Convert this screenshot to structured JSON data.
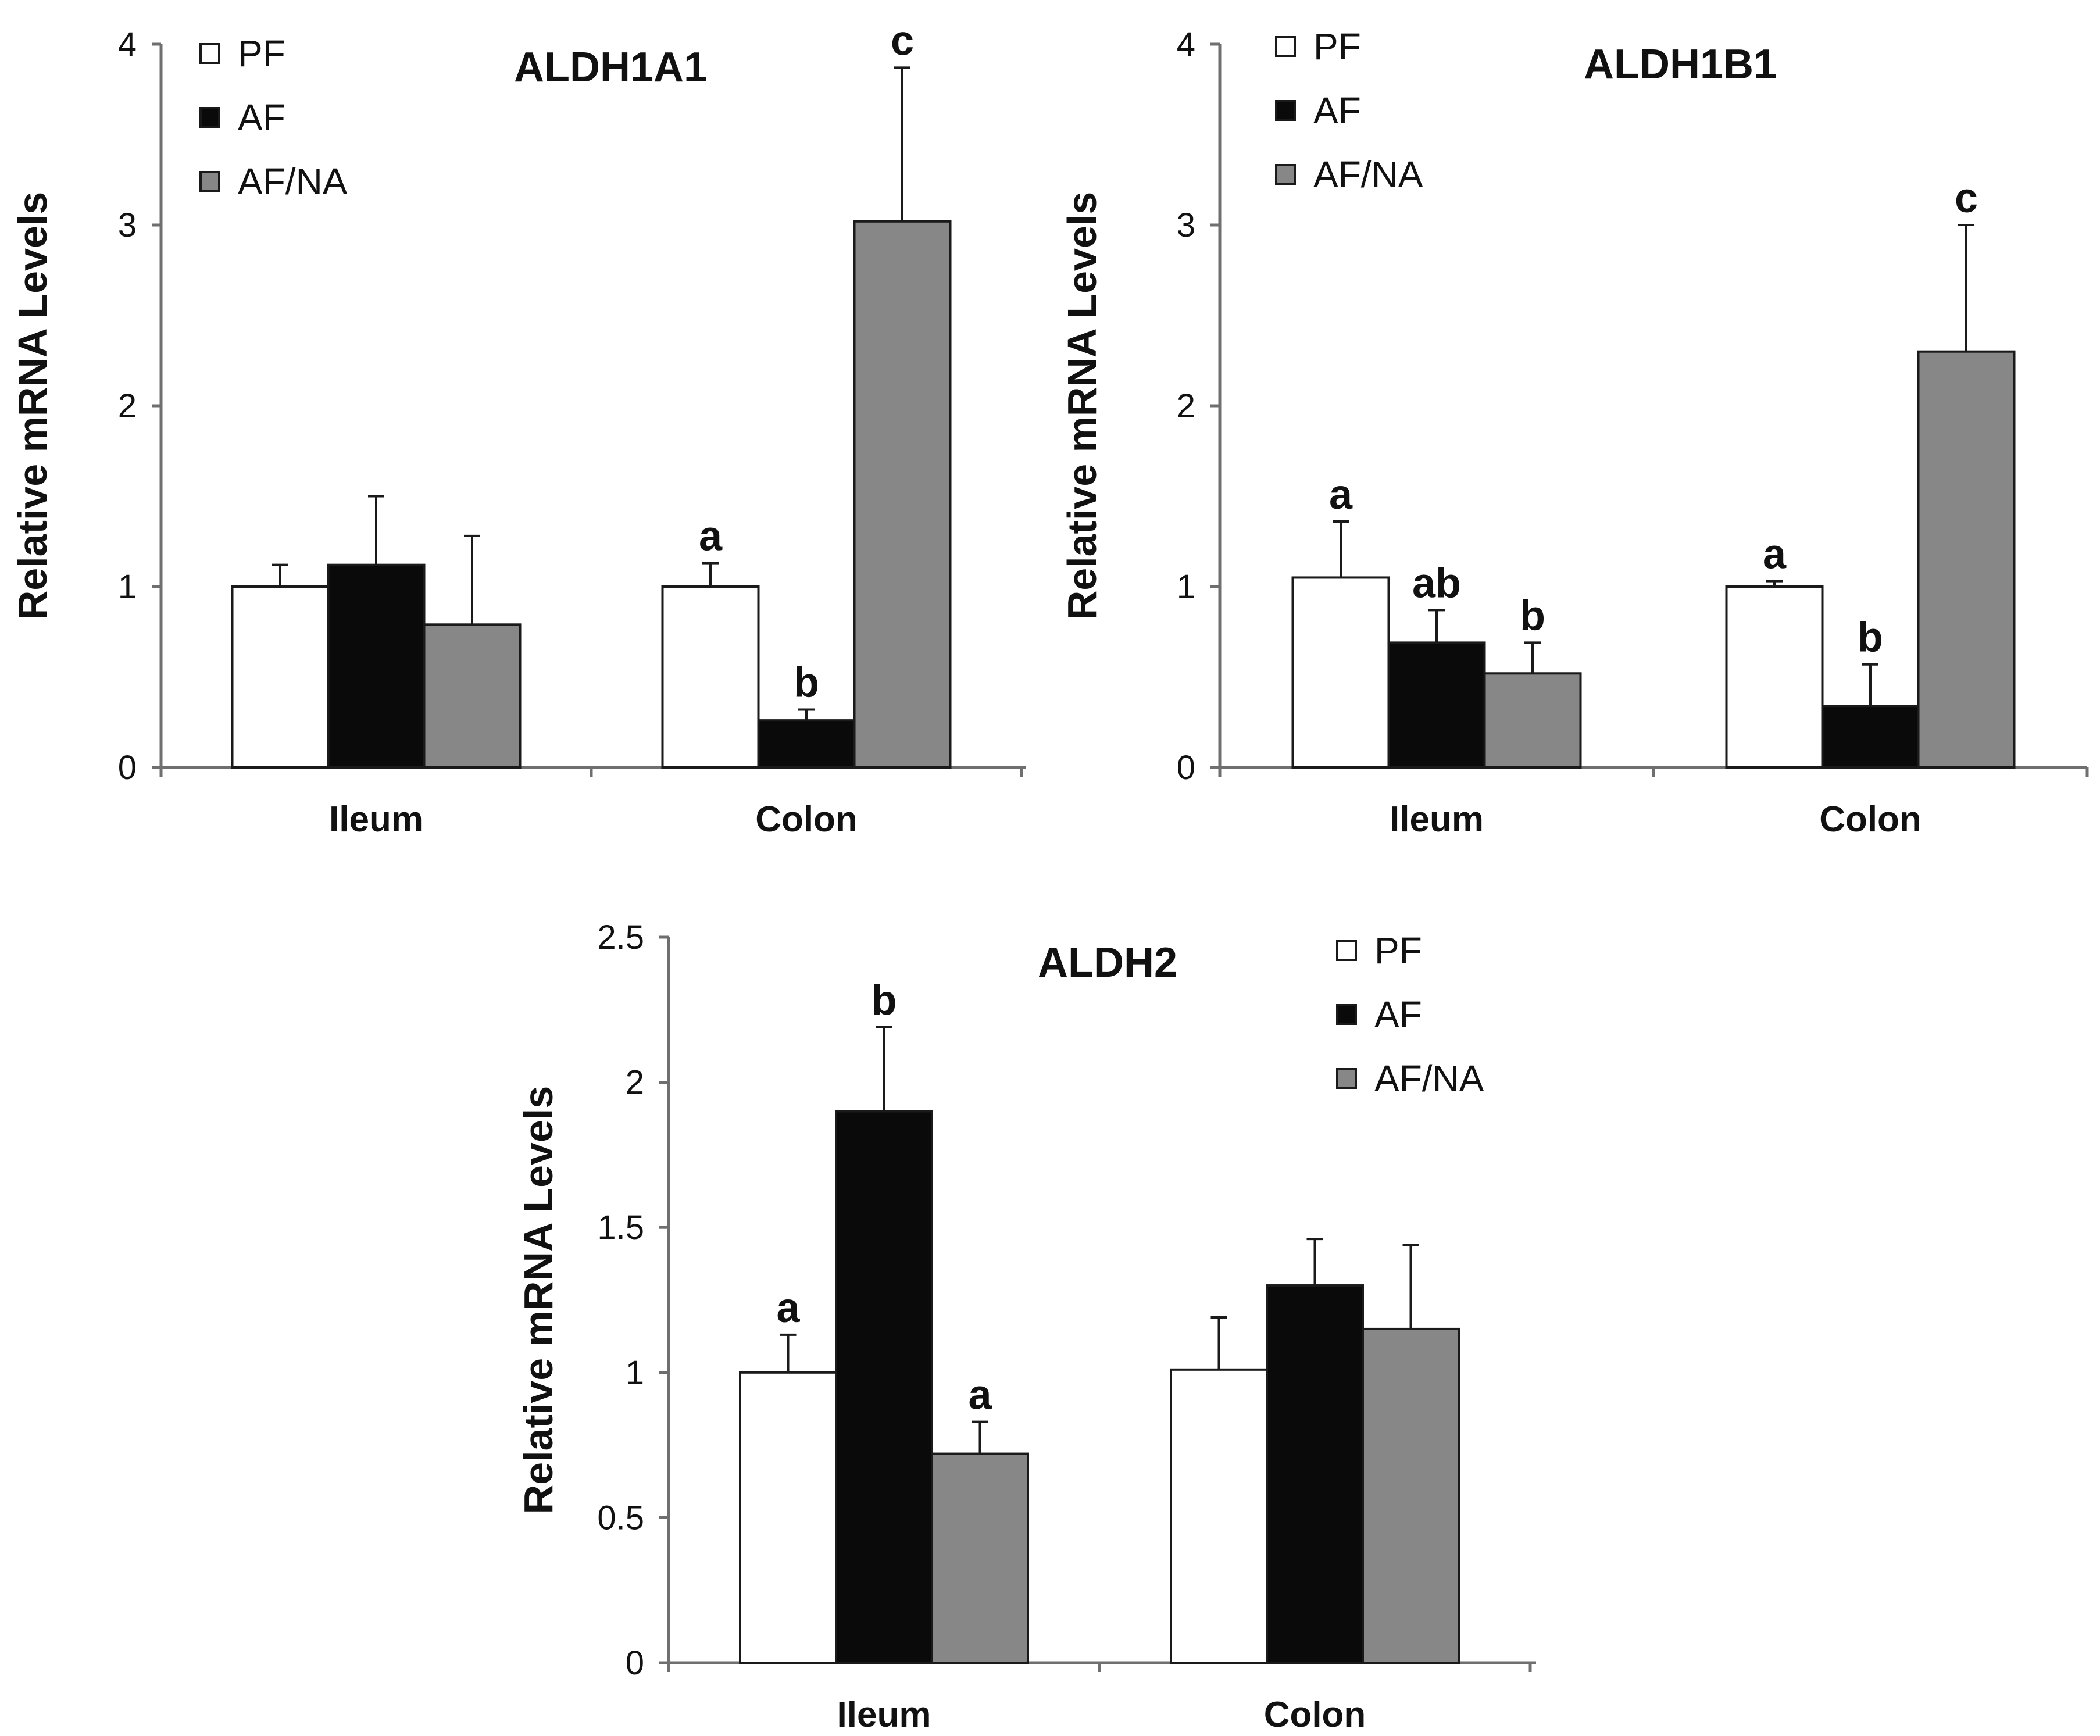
{
  "series_style": {
    "PF": "#ffffff",
    "AF": "#0a0a0a",
    "AF/NA": "#878787",
    "stroke": "#1a1a1a",
    "axis": "#6f6f6f"
  },
  "chart_data": [
    {
      "type": "bar",
      "title": "ALDH1A1",
      "xlabel": "",
      "ylabel": "Relative mRNA Levels",
      "categories": [
        "Ileum",
        "Colon"
      ],
      "ylim": [
        0,
        4
      ],
      "yticks": [
        0,
        1,
        2,
        3,
        4
      ],
      "legend": [
        "PF",
        "AF",
        "AF/NA"
      ],
      "legend_position": "top-left",
      "series": [
        {
          "name": "PF",
          "values": [
            1.0,
            1.0
          ],
          "errors": [
            0.12,
            0.13
          ],
          "labels": [
            "",
            "a"
          ]
        },
        {
          "name": "AF",
          "values": [
            1.12,
            0.26
          ],
          "errors": [
            0.38,
            0.06
          ],
          "labels": [
            "",
            "b"
          ]
        },
        {
          "name": "AF/NA",
          "values": [
            0.79,
            3.02
          ],
          "errors": [
            0.49,
            0.85
          ],
          "labels": [
            "",
            "c"
          ]
        }
      ]
    },
    {
      "type": "bar",
      "title": "ALDH1B1",
      "xlabel": "",
      "ylabel": "Relative mRNA Levels",
      "categories": [
        "Ileum",
        "Colon"
      ],
      "ylim": [
        0,
        4
      ],
      "yticks": [
        0,
        1,
        2,
        3,
        4
      ],
      "legend": [
        "PF",
        "AF",
        "AF/NA"
      ],
      "legend_position": "top-left",
      "series": [
        {
          "name": "PF",
          "values": [
            1.05,
            1.0
          ],
          "errors": [
            0.31,
            0.03
          ],
          "labels": [
            "a",
            "a"
          ]
        },
        {
          "name": "AF",
          "values": [
            0.69,
            0.34
          ],
          "errors": [
            0.18,
            0.23
          ],
          "labels": [
            "ab",
            "b"
          ]
        },
        {
          "name": "AF/NA",
          "values": [
            0.52,
            2.3
          ],
          "errors": [
            0.17,
            0.7
          ],
          "labels": [
            "b",
            "c"
          ]
        }
      ]
    },
    {
      "type": "bar",
      "title": "ALDH2",
      "xlabel": "",
      "ylabel": "Relative mRNA Levels",
      "categories": [
        "Ileum",
        "Colon"
      ],
      "ylim": [
        0,
        2.5
      ],
      "yticks": [
        0,
        0.5,
        1,
        1.5,
        2,
        2.5
      ],
      "legend": [
        "PF",
        "AF",
        "AF/NA"
      ],
      "legend_position": "top-right",
      "series": [
        {
          "name": "PF",
          "values": [
            1.0,
            1.01
          ],
          "errors": [
            0.13,
            0.18
          ],
          "labels": [
            "a",
            ""
          ]
        },
        {
          "name": "AF",
          "values": [
            1.9,
            1.3
          ],
          "errors": [
            0.29,
            0.16
          ],
          "labels": [
            "b",
            ""
          ]
        },
        {
          "name": "AF/NA",
          "values": [
            0.72,
            1.15
          ],
          "errors": [
            0.11,
            0.29
          ],
          "labels": [
            "a",
            ""
          ]
        }
      ]
    }
  ]
}
